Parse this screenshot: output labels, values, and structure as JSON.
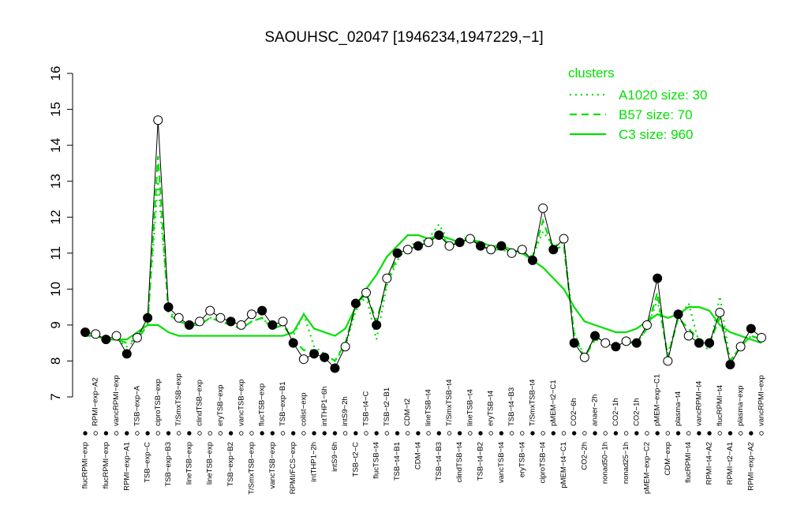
{
  "chart_data": {
    "type": "line",
    "title": "SAOUHSC_02047 [1946234,1947229,−1]",
    "legend_title": "clusters",
    "ylim": [
      7,
      16
    ],
    "yticks": [
      7,
      8,
      9,
      10,
      11,
      12,
      13,
      14,
      15,
      16
    ],
    "categories": [
      "flucRPMI−exp",
      "RPMI−exp−A2",
      "flucRPMI−exp",
      "vancRPMI−exp",
      "RPMI−exp−A1",
      "TSB−exp−A",
      "TSB−exp−C",
      "ciproTSB−exp",
      "TSB−exp−B3",
      "T/SmxTSB−exp",
      "lineTSB−exp",
      "clindTSB−exp",
      "lineTSB−exp",
      "eryTSB−exp",
      "TSB−exp−B2",
      "vancTSB−exp",
      "T/SmxTSB−exp",
      "flucTSB−exp",
      "vancTSB−exp",
      "TSB−exp−B1",
      "RPMI/FCS−exp",
      "colist−exp",
      "intTHP1−2h",
      "intTHP1−6h",
      "intS9−6h",
      "intS9−2h",
      "TSB−t2−C",
      "TSB−t4−C",
      "flucTSB−t4",
      "TSB−t2−B1",
      "TSB−t4−B1",
      "CDM−t2",
      "CDM−t4",
      "lineTSB−t4",
      "TSB−t4−B3",
      "T/SmxTSB−t4",
      "clindTSB−t4",
      "lineTSB−t4",
      "TSB−t4−B2",
      "eryTSB−t4",
      "vancTSB−t4",
      "TSB−t4−B3",
      "eryTSB−t4",
      "T/SmxTSB−t4",
      "ciproTSB−t4",
      "pMEM−t2−C1",
      "pMEM−t4−C1",
      "CO2−6h",
      "CO2−2h",
      "anaer−2h",
      "nonad50−1h",
      "CO2−1h",
      "nonad25−1h",
      "CO2−1h",
      "pMEM−exp−C2",
      "pMEM−exp−C1",
      "CDM−exp",
      "plasma−t4",
      "flucRPMI−t4",
      "vancRPMI−t4",
      "RPMI−t4−A2",
      "flucRPMI−t4",
      "RPMI−t2−A1",
      "plasma−exp",
      "RPMI−exp−A2",
      "vancRPMI−exp"
    ],
    "values": [
      8.8,
      8.75,
      8.6,
      8.7,
      8.2,
      8.65,
      9.2,
      14.7,
      9.5,
      9.2,
      9.0,
      9.1,
      9.4,
      9.2,
      9.1,
      9.0,
      9.3,
      9.4,
      9.0,
      9.1,
      8.5,
      8.05,
      8.2,
      8.1,
      7.8,
      8.4,
      9.6,
      9.9,
      9.0,
      10.3,
      11.0,
      11.1,
      11.2,
      11.3,
      11.5,
      11.2,
      11.3,
      11.4,
      11.2,
      11.1,
      11.2,
      11.0,
      11.1,
      10.8,
      12.25,
      11.1,
      11.4,
      8.5,
      8.1,
      8.7,
      8.5,
      8.4,
      8.55,
      8.5,
      9.0,
      10.3,
      8.0,
      9.3,
      8.7,
      8.5,
      8.5,
      9.35,
      7.9,
      8.4,
      8.9,
      8.65
    ],
    "point_colors": [
      "black",
      "white",
      "black",
      "white",
      "black",
      "white",
      "black",
      "white",
      "black",
      "white",
      "black",
      "white",
      "white",
      "white",
      "black",
      "white",
      "white",
      "black",
      "black",
      "white",
      "black",
      "white",
      "black",
      "black",
      "black",
      "white",
      "black",
      "white",
      "black",
      "white",
      "black",
      "white",
      "black",
      "white",
      "black",
      "white",
      "black",
      "white",
      "black",
      "white",
      "black",
      "white",
      "white",
      "black",
      "white",
      "black",
      "white",
      "black",
      "white",
      "black",
      "white",
      "black",
      "white",
      "black",
      "white",
      "black",
      "white",
      "black",
      "white",
      "black",
      "black",
      "white",
      "black",
      "white",
      "black",
      "white"
    ],
    "series": [
      {
        "name": "A1020 size: 30",
        "color": "#00e000",
        "dash": "dotted",
        "values": [
          8.8,
          8.7,
          8.6,
          8.6,
          8.4,
          8.6,
          9.1,
          13.0,
          9.4,
          9.1,
          9.0,
          9.0,
          9.2,
          9.1,
          9.0,
          8.9,
          9.1,
          9.2,
          8.9,
          9.0,
          8.7,
          9.3,
          8.4,
          8.2,
          8.0,
          8.4,
          9.4,
          9.8,
          8.6,
          10.1,
          10.8,
          11.2,
          11.3,
          11.4,
          11.8,
          11.3,
          11.3,
          11.5,
          11.3,
          11.2,
          11.1,
          11.0,
          11.0,
          10.9,
          11.6,
          11.2,
          11.3,
          8.8,
          8.1,
          8.7,
          8.5,
          8.4,
          8.5,
          8.5,
          8.9,
          9.7,
          8.2,
          9.2,
          9.6,
          8.5,
          8.3,
          9.8,
          8.0,
          8.4,
          8.7,
          8.6
        ]
      },
      {
        "name": "B57 size: 70",
        "color": "#00e000",
        "dash": "dashed",
        "values": [
          8.7,
          8.7,
          8.6,
          8.6,
          8.5,
          8.6,
          9.0,
          13.7,
          9.3,
          9.1,
          9.0,
          9.0,
          9.2,
          9.1,
          9.0,
          8.9,
          9.1,
          9.2,
          8.9,
          9.0,
          8.6,
          8.3,
          8.3,
          8.2,
          8.0,
          8.5,
          9.5,
          9.9,
          9.1,
          10.2,
          10.9,
          11.1,
          11.2,
          11.3,
          11.6,
          11.2,
          11.3,
          11.4,
          11.2,
          11.1,
          11.1,
          11.0,
          11.0,
          10.9,
          11.9,
          11.1,
          11.2,
          8.7,
          8.1,
          8.6,
          8.5,
          8.4,
          8.5,
          8.5,
          8.9,
          9.9,
          8.1,
          9.2,
          8.9,
          8.6,
          8.5,
          9.2,
          8.0,
          8.4,
          8.7,
          8.6
        ]
      },
      {
        "name": "C3 size: 960",
        "color": "#00e000",
        "dash": "solid",
        "values": [
          8.7,
          8.7,
          8.6,
          8.6,
          8.6,
          8.8,
          9.0,
          9.0,
          8.8,
          8.7,
          8.7,
          8.7,
          8.7,
          8.7,
          8.7,
          8.7,
          8.7,
          8.7,
          8.7,
          8.7,
          8.8,
          9.3,
          8.9,
          8.8,
          8.7,
          8.9,
          9.5,
          10.0,
          10.4,
          10.9,
          11.2,
          11.5,
          11.5,
          11.4,
          11.5,
          11.4,
          11.3,
          11.4,
          11.3,
          11.2,
          11.2,
          11.1,
          11.0,
          10.8,
          10.6,
          10.3,
          10.0,
          9.5,
          9.1,
          9.0,
          8.9,
          8.8,
          8.8,
          8.9,
          9.1,
          9.3,
          9.2,
          9.3,
          9.5,
          9.5,
          9.4,
          9.0,
          8.8,
          8.7,
          8.6,
          8.5
        ]
      }
    ]
  }
}
